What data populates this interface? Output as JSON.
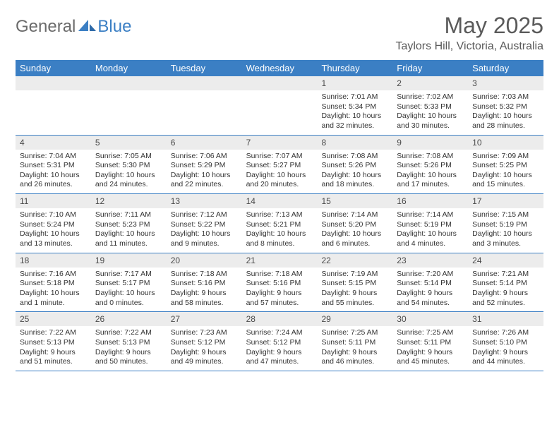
{
  "brand": {
    "part1": "General",
    "part2": "Blue"
  },
  "title": "May 2025",
  "location": "Taylors Hill, Victoria, Australia",
  "theme": {
    "header_bg": "#3b7fc4",
    "header_text": "#ffffff",
    "daynum_bg": "#ececec",
    "border": "#3b7fc4",
    "text": "#333333",
    "title_color": "#5a5a5a"
  },
  "weekdays": [
    "Sunday",
    "Monday",
    "Tuesday",
    "Wednesday",
    "Thursday",
    "Friday",
    "Saturday"
  ],
  "weeks": [
    [
      {
        "empty": true
      },
      {
        "empty": true
      },
      {
        "empty": true
      },
      {
        "empty": true
      },
      {
        "day": "1",
        "sunrise": "7:01 AM",
        "sunset": "5:34 PM",
        "daylight": "10 hours and 32 minutes."
      },
      {
        "day": "2",
        "sunrise": "7:02 AM",
        "sunset": "5:33 PM",
        "daylight": "10 hours and 30 minutes."
      },
      {
        "day": "3",
        "sunrise": "7:03 AM",
        "sunset": "5:32 PM",
        "daylight": "10 hours and 28 minutes."
      }
    ],
    [
      {
        "day": "4",
        "sunrise": "7:04 AM",
        "sunset": "5:31 PM",
        "daylight": "10 hours and 26 minutes."
      },
      {
        "day": "5",
        "sunrise": "7:05 AM",
        "sunset": "5:30 PM",
        "daylight": "10 hours and 24 minutes."
      },
      {
        "day": "6",
        "sunrise": "7:06 AM",
        "sunset": "5:29 PM",
        "daylight": "10 hours and 22 minutes."
      },
      {
        "day": "7",
        "sunrise": "7:07 AM",
        "sunset": "5:27 PM",
        "daylight": "10 hours and 20 minutes."
      },
      {
        "day": "8",
        "sunrise": "7:08 AM",
        "sunset": "5:26 PM",
        "daylight": "10 hours and 18 minutes."
      },
      {
        "day": "9",
        "sunrise": "7:08 AM",
        "sunset": "5:26 PM",
        "daylight": "10 hours and 17 minutes."
      },
      {
        "day": "10",
        "sunrise": "7:09 AM",
        "sunset": "5:25 PM",
        "daylight": "10 hours and 15 minutes."
      }
    ],
    [
      {
        "day": "11",
        "sunrise": "7:10 AM",
        "sunset": "5:24 PM",
        "daylight": "10 hours and 13 minutes."
      },
      {
        "day": "12",
        "sunrise": "7:11 AM",
        "sunset": "5:23 PM",
        "daylight": "10 hours and 11 minutes."
      },
      {
        "day": "13",
        "sunrise": "7:12 AM",
        "sunset": "5:22 PM",
        "daylight": "10 hours and 9 minutes."
      },
      {
        "day": "14",
        "sunrise": "7:13 AM",
        "sunset": "5:21 PM",
        "daylight": "10 hours and 8 minutes."
      },
      {
        "day": "15",
        "sunrise": "7:14 AM",
        "sunset": "5:20 PM",
        "daylight": "10 hours and 6 minutes."
      },
      {
        "day": "16",
        "sunrise": "7:14 AM",
        "sunset": "5:19 PM",
        "daylight": "10 hours and 4 minutes."
      },
      {
        "day": "17",
        "sunrise": "7:15 AM",
        "sunset": "5:19 PM",
        "daylight": "10 hours and 3 minutes."
      }
    ],
    [
      {
        "day": "18",
        "sunrise": "7:16 AM",
        "sunset": "5:18 PM",
        "daylight": "10 hours and 1 minute."
      },
      {
        "day": "19",
        "sunrise": "7:17 AM",
        "sunset": "5:17 PM",
        "daylight": "10 hours and 0 minutes."
      },
      {
        "day": "20",
        "sunrise": "7:18 AM",
        "sunset": "5:16 PM",
        "daylight": "9 hours and 58 minutes."
      },
      {
        "day": "21",
        "sunrise": "7:18 AM",
        "sunset": "5:16 PM",
        "daylight": "9 hours and 57 minutes."
      },
      {
        "day": "22",
        "sunrise": "7:19 AM",
        "sunset": "5:15 PM",
        "daylight": "9 hours and 55 minutes."
      },
      {
        "day": "23",
        "sunrise": "7:20 AM",
        "sunset": "5:14 PM",
        "daylight": "9 hours and 54 minutes."
      },
      {
        "day": "24",
        "sunrise": "7:21 AM",
        "sunset": "5:14 PM",
        "daylight": "9 hours and 52 minutes."
      }
    ],
    [
      {
        "day": "25",
        "sunrise": "7:22 AM",
        "sunset": "5:13 PM",
        "daylight": "9 hours and 51 minutes."
      },
      {
        "day": "26",
        "sunrise": "7:22 AM",
        "sunset": "5:13 PM",
        "daylight": "9 hours and 50 minutes."
      },
      {
        "day": "27",
        "sunrise": "7:23 AM",
        "sunset": "5:12 PM",
        "daylight": "9 hours and 49 minutes."
      },
      {
        "day": "28",
        "sunrise": "7:24 AM",
        "sunset": "5:12 PM",
        "daylight": "9 hours and 47 minutes."
      },
      {
        "day": "29",
        "sunrise": "7:25 AM",
        "sunset": "5:11 PM",
        "daylight": "9 hours and 46 minutes."
      },
      {
        "day": "30",
        "sunrise": "7:25 AM",
        "sunset": "5:11 PM",
        "daylight": "9 hours and 45 minutes."
      },
      {
        "day": "31",
        "sunrise": "7:26 AM",
        "sunset": "5:10 PM",
        "daylight": "9 hours and 44 minutes."
      }
    ]
  ]
}
